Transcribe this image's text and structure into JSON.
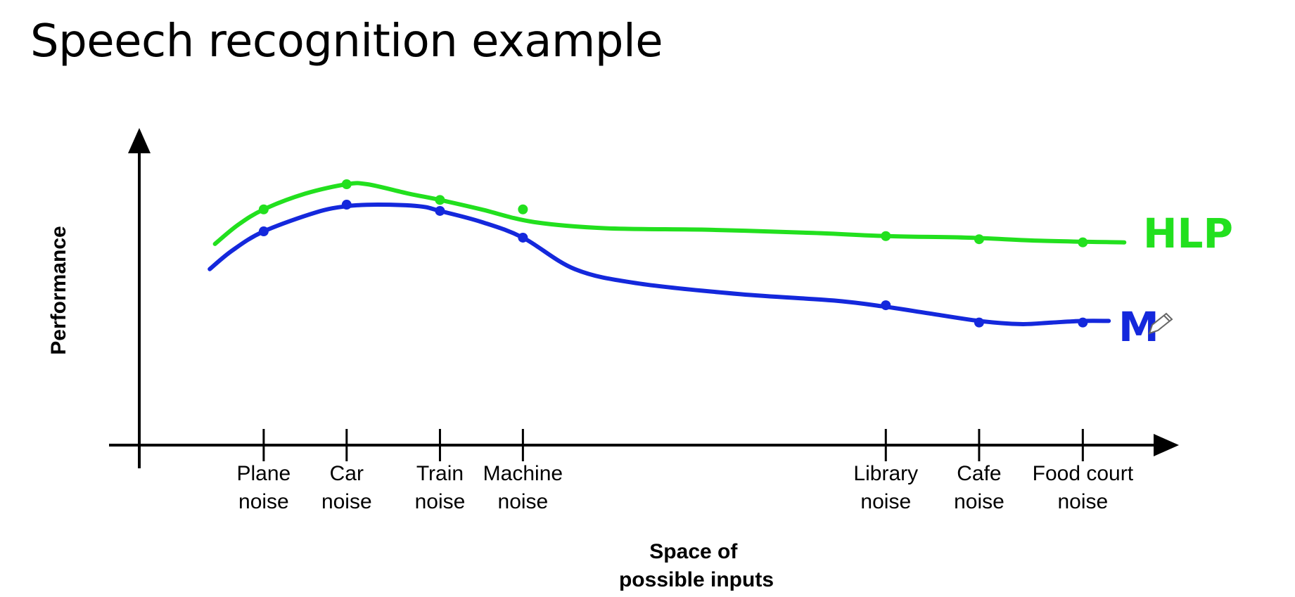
{
  "slide": {
    "title": "Speech recognition example"
  },
  "chart_data": {
    "type": "line",
    "title": "Speech recognition example",
    "ylabel": "Performance",
    "xlabel_lines": [
      "Space of",
      "possible inputs"
    ],
    "categories": [
      {
        "lines": [
          "Plane",
          "noise"
        ]
      },
      {
        "lines": [
          "Car",
          "noise"
        ]
      },
      {
        "lines": [
          "Train",
          "noise"
        ]
      },
      {
        "lines": [
          "Machine",
          "noise"
        ]
      },
      {
        "lines": [
          "Library",
          "noise"
        ]
      },
      {
        "lines": [
          "Cafe",
          "noise"
        ]
      },
      {
        "lines": [
          "Food court",
          "noise"
        ]
      }
    ],
    "x": [
      0.12,
      0.2,
      0.29,
      0.37,
      0.72,
      0.81,
      0.91
    ],
    "xlim": [
      0,
      1
    ],
    "ylim": [
      0,
      1
    ],
    "series": [
      {
        "name": "HLP",
        "color": "#22e01e",
        "curve_x": [
          0.073,
          0.095,
          0.12,
          0.16,
          0.2,
          0.22,
          0.26,
          0.29,
          0.33,
          0.38,
          0.45,
          0.55,
          0.65,
          0.72,
          0.8,
          0.87,
          0.95
        ],
        "curve_y": [
          0.64,
          0.7,
          0.75,
          0.8,
          0.83,
          0.83,
          0.8,
          0.78,
          0.75,
          0.71,
          0.69,
          0.685,
          0.675,
          0.665,
          0.66,
          0.65,
          0.645
        ],
        "points_x": [
          0.12,
          0.2,
          0.29,
          0.37,
          0.72,
          0.81,
          0.91
        ],
        "points_y": [
          0.75,
          0.83,
          0.78,
          0.75,
          0.665,
          0.655,
          0.645
        ]
      },
      {
        "name": "M",
        "color": "#1428dc",
        "curve_x": [
          0.068,
          0.09,
          0.12,
          0.17,
          0.2,
          0.23,
          0.27,
          0.29,
          0.33,
          0.37,
          0.42,
          0.48,
          0.58,
          0.67,
          0.72,
          0.76,
          0.81,
          0.85,
          0.88,
          0.91,
          0.935
        ],
        "curve_y": [
          0.56,
          0.62,
          0.68,
          0.74,
          0.76,
          0.765,
          0.76,
          0.745,
          0.71,
          0.66,
          0.56,
          0.515,
          0.48,
          0.46,
          0.44,
          0.42,
          0.395,
          0.385,
          0.39,
          0.395,
          0.395
        ],
        "points_x": [
          0.12,
          0.2,
          0.29,
          0.37,
          0.72,
          0.81,
          0.91
        ],
        "points_y": [
          0.68,
          0.765,
          0.745,
          0.66,
          0.445,
          0.39,
          0.39
        ]
      }
    ],
    "grid": false,
    "legend": "series labels at right end of lines"
  }
}
